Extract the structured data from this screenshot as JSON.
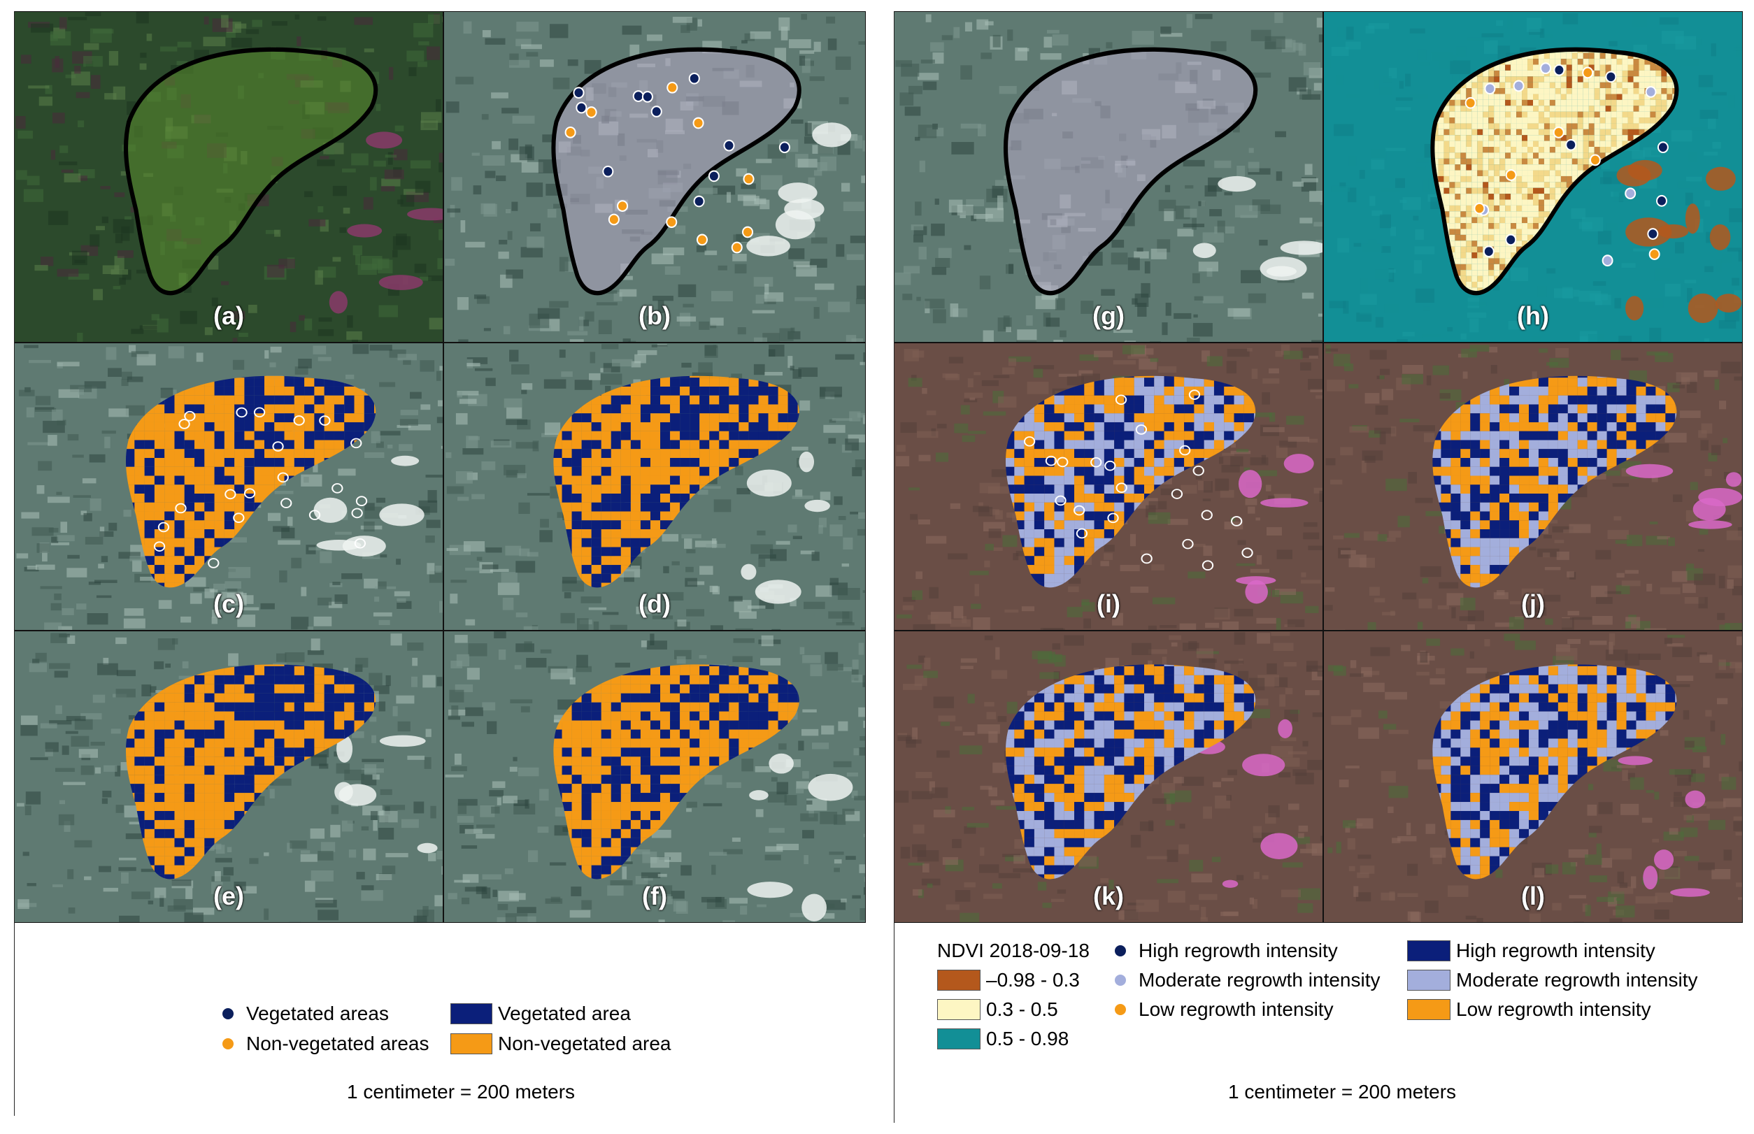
{
  "panels": [
    {
      "id": "a",
      "label": "(a)",
      "style": "rgb"
    },
    {
      "id": "b",
      "label": "(b)",
      "style": "false"
    },
    {
      "id": "c",
      "label": "(c)",
      "style": "false"
    },
    {
      "id": "d",
      "label": "(d)",
      "style": "false"
    },
    {
      "id": "e",
      "label": "(e)",
      "style": "false"
    },
    {
      "id": "f",
      "label": "(f)",
      "style": "false"
    },
    {
      "id": "g",
      "label": "(g)",
      "style": "false"
    },
    {
      "id": "h",
      "label": "(h)",
      "style": "ndvi"
    },
    {
      "id": "i",
      "label": "(i)",
      "style": "infra"
    },
    {
      "id": "j",
      "label": "(j)",
      "style": "infra"
    },
    {
      "id": "k",
      "label": "(k)",
      "style": "infra"
    },
    {
      "id": "l",
      "label": "(l)",
      "style": "infra"
    }
  ],
  "legend_left": {
    "points": [
      {
        "label": "Vegetated areas",
        "color": "#0b1f5c"
      },
      {
        "label": "Non-vegetated areas",
        "color": "#f59a16"
      }
    ],
    "areas": [
      {
        "label": "Vegetated area",
        "color": "#0b1f7a"
      },
      {
        "label": "Non-vegetated area",
        "color": "#f59a16"
      }
    ],
    "scale": "1 centimeter = 200 meters"
  },
  "legend_right": {
    "ndvi_title": "NDVI 2018-09-18",
    "ndvi_classes": [
      {
        "label": "–0.98 - 0.3",
        "color": "#b4581c"
      },
      {
        "label": "0.3 - 0.5",
        "color": "#fdf6c3"
      },
      {
        "label": "0.5 - 0.98",
        "color": "#128f96"
      }
    ],
    "points": [
      {
        "label": "High regrowth intensity",
        "color": "#0b1f5c"
      },
      {
        "label": "Moderate regrowth intensity",
        "color": "#a3aedc"
      },
      {
        "label": "Low regrowth intensity",
        "color": "#f59a16"
      }
    ],
    "areas": [
      {
        "label": "High regrowth intensity",
        "color": "#0b1f7a"
      },
      {
        "label": "Moderate regrowth intensity",
        "color": "#a3aedc"
      },
      {
        "label": "Low regrowth intensity",
        "color": "#f59a16"
      }
    ],
    "scale": "1 centimeter = 200 meters"
  }
}
